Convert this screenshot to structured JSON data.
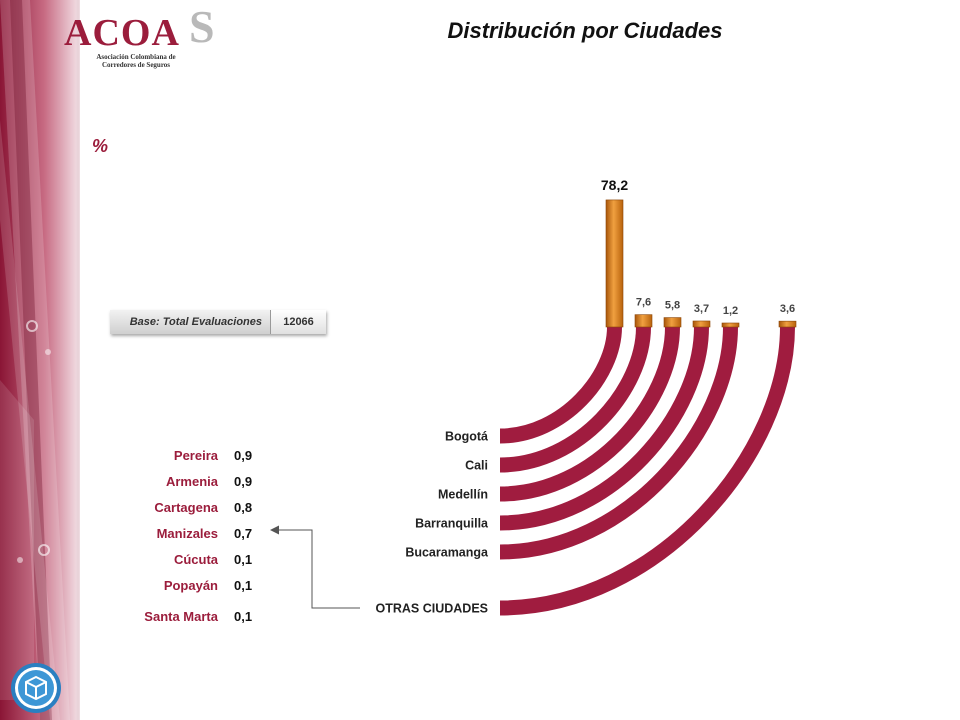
{
  "logo": {
    "main": "ACOA",
    "accent": "S",
    "sub": "Asociación Colombiana de Corredores de Seguros"
  },
  "title": "Distribución por Ciudades",
  "unit": "%",
  "base": {
    "label": "Base: Total Evaluaciones",
    "value": "12066"
  },
  "chart_data": {
    "type": "bar",
    "title": "Distribución por Ciudades",
    "ylabel": "%",
    "categories": [
      "Bogotá",
      "Cali",
      "Medellín",
      "Barranquilla",
      "Bucaramanga",
      "OTRAS CIUDADES"
    ],
    "values": [
      78.2,
      7.6,
      5.8,
      3.7,
      1.2,
      3.6
    ],
    "value_labels": [
      "78,2",
      "7,6",
      "5,8",
      "3,7",
      "1,2",
      "3,6"
    ],
    "ylim": [
      0,
      80
    ],
    "grid": false,
    "colors": {
      "bar": "#e07f10",
      "arc": "#a01c3f"
    }
  },
  "others": [
    {
      "city": "Pereira",
      "value": "0,9"
    },
    {
      "city": "Armenia",
      "value": "0,9"
    },
    {
      "city": "Cartagena",
      "value": "0,8"
    },
    {
      "city": "Manizales",
      "value": "0,7"
    },
    {
      "city": "Cúcuta",
      "value": "0,1"
    },
    {
      "city": "Popayán",
      "value": "0,1"
    },
    {
      "city": "Santa Marta",
      "value": "0,1"
    }
  ],
  "colors": {
    "brand": "#9b1d3c",
    "logo_accent": "#b9b9b9",
    "badge": "#2a7fc1"
  },
  "icons": {
    "badge": "cube-icon"
  }
}
